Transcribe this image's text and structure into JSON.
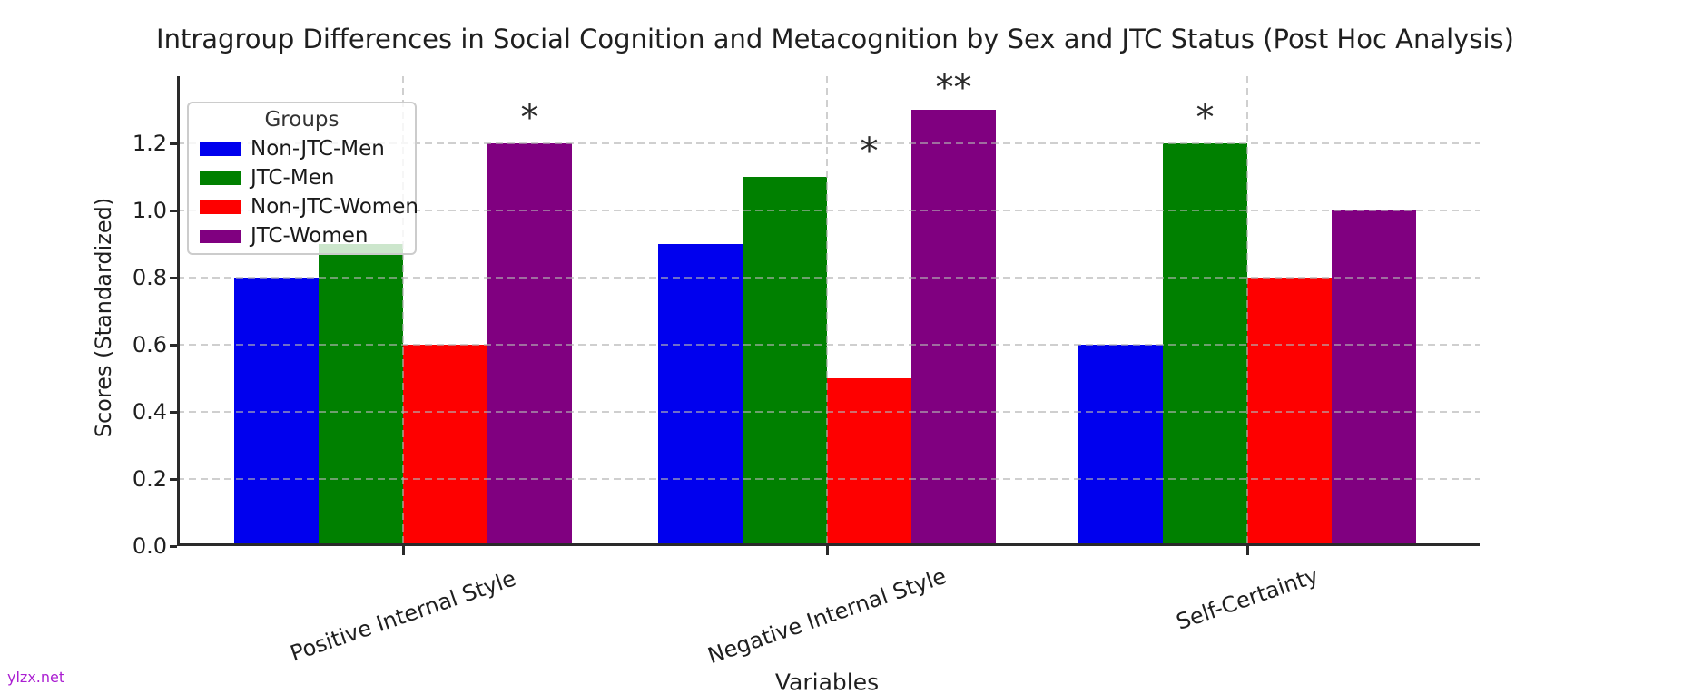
{
  "watermark": {
    "text": "ylzx.net",
    "color": "#ab1fd2"
  },
  "chart_data": {
    "type": "bar",
    "title": "Intragroup Differences in Social Cognition and Metacognition by Sex and JTC Status (Post Hoc Analysis)",
    "xlabel": "Variables",
    "ylabel": "Scores (Standardized)",
    "categories": [
      "Positive Internal Style",
      "Negative Internal Style",
      "Self-Certainty"
    ],
    "series": [
      {
        "name": "Non-JTC-Men",
        "color": "#0000ee",
        "values": [
          0.8,
          0.9,
          0.6
        ]
      },
      {
        "name": "JTC-Men",
        "color": "#008000",
        "values": [
          0.9,
          1.1,
          1.2
        ]
      },
      {
        "name": "Non-JTC-Women",
        "color": "#fe0000",
        "values": [
          0.6,
          0.5,
          0.8
        ]
      },
      {
        "name": "JTC-Women",
        "color": "#800080",
        "values": [
          1.2,
          1.3,
          1.0
        ]
      }
    ],
    "ytick_labels": [
      "0.0",
      "0.2",
      "0.4",
      "0.6",
      "0.8",
      "1.0",
      "1.2"
    ],
    "ylim": [
      0.0,
      1.4
    ],
    "grid": {
      "style": "dashed",
      "axes": "both",
      "drawn_over_bars": true
    },
    "legend": {
      "title": "Groups",
      "position": "upper-left"
    },
    "annotations": [
      {
        "category": "Positive Internal Style",
        "series": "JTC-Women",
        "text": "*",
        "y": 1.3
      },
      {
        "category": "Negative Internal Style",
        "series": "Non-JTC-Women",
        "text": "*",
        "y": 1.2
      },
      {
        "category": "Negative Internal Style",
        "series": "JTC-Women",
        "text": "**",
        "y": 1.39
      },
      {
        "category": "Self-Certainty",
        "series": "JTC-Men",
        "text": "*",
        "y": 1.3
      }
    ],
    "colors": {
      "axis": "#2a2a2a",
      "text": "#1f1f1f",
      "grid_dash": "#d0d0d0"
    }
  }
}
